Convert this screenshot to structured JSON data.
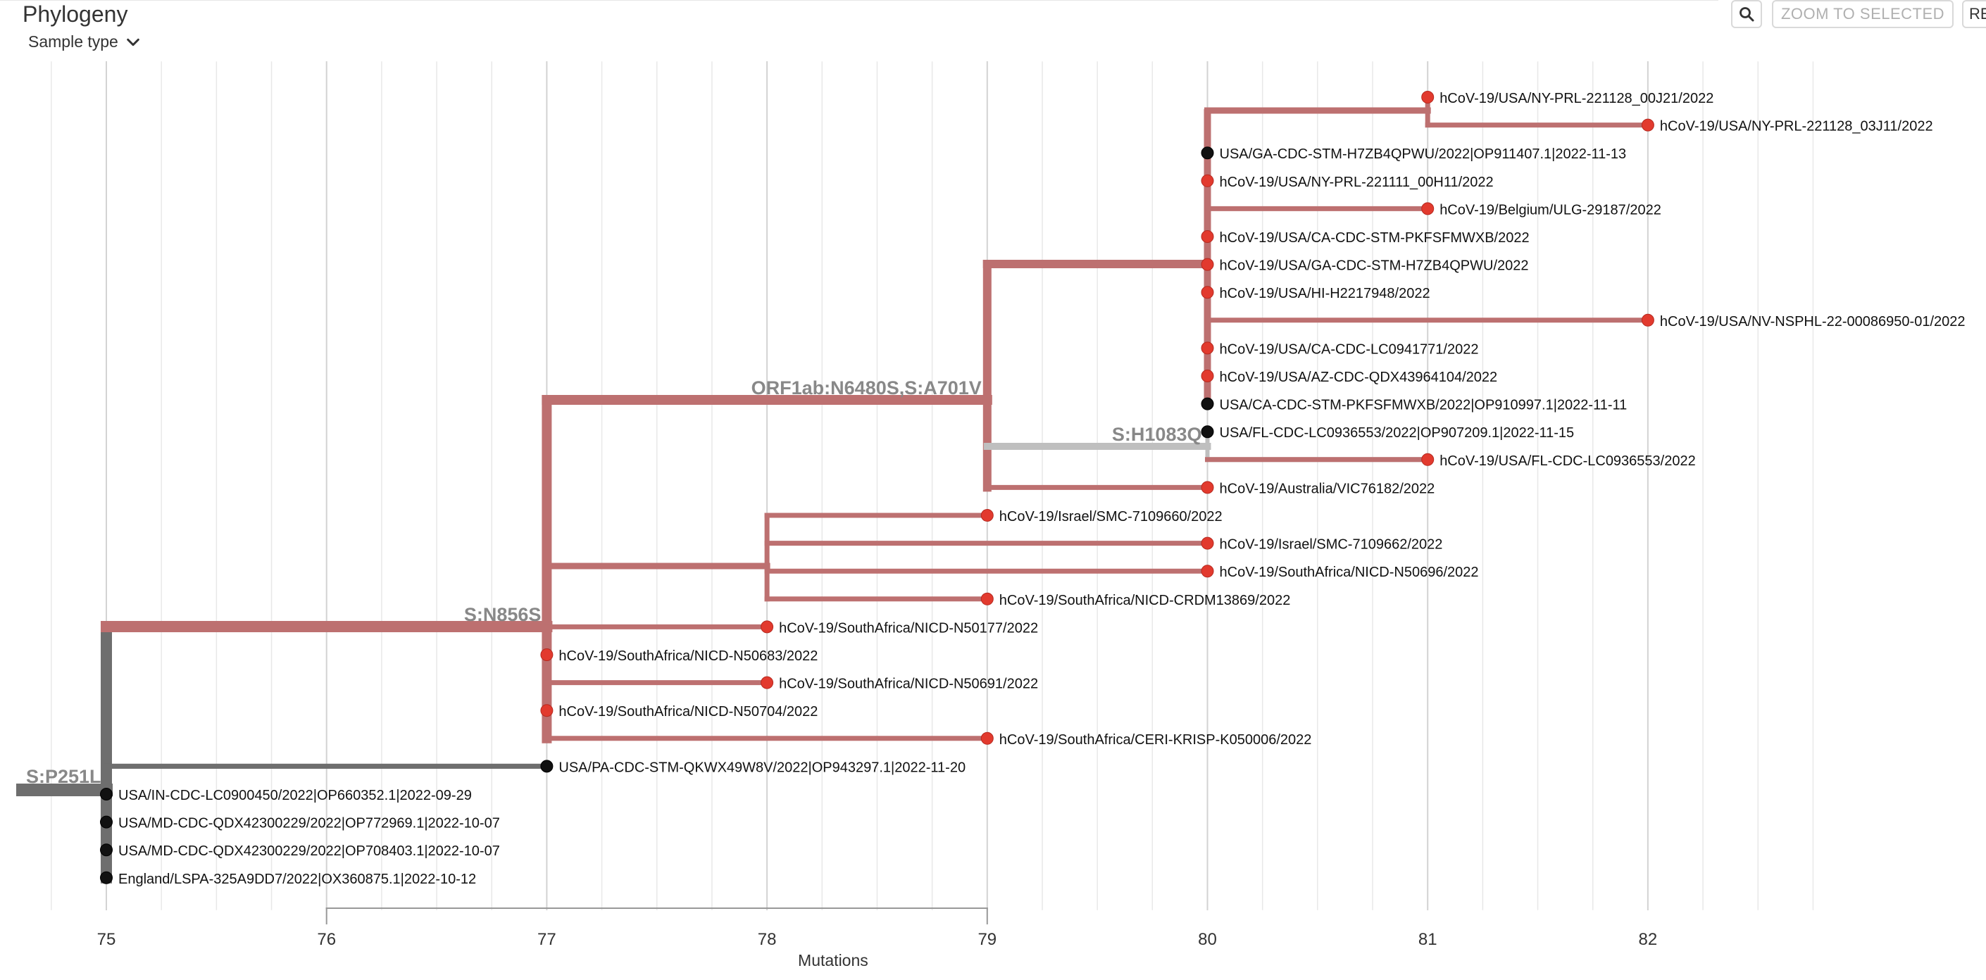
{
  "header": {
    "title": "Phylogeny",
    "sample_type_label": "Sample type",
    "zoom_to_selected_label": "ZOOM TO SELECTED",
    "reset_label": "RE"
  },
  "colors": {
    "highlight_branch": "#bd7070",
    "root_branch": "#6e6e6e",
    "muted_branch": "#bfbfbf",
    "red_tip": "#e23a2e",
    "black_tip": "#111111",
    "mutation_label": "#888888",
    "grid": "#e8e8e8",
    "major_grid": "#d3d3d3"
  },
  "axis": {
    "label": "Mutations",
    "ticks": [
      "75",
      "76",
      "77",
      "78",
      "79",
      "80",
      "81",
      "82"
    ]
  },
  "mutation_labels": [
    "S:P251L",
    "S:N856S",
    "ORF1ab:N6480S,S:A701V",
    "S:H1083Q"
  ],
  "tips": [
    "hCoV-19/USA/NY-PRL-221128_00J21/2022",
    "hCoV-19/USA/NY-PRL-221128_03J11/2022",
    "USA/GA-CDC-STM-H7ZB4QPWU/2022|OP911407.1|2022-11-13",
    "hCoV-19/USA/NY-PRL-221111_00H11/2022",
    "hCoV-19/Belgium/ULG-29187/2022",
    "hCoV-19/USA/CA-CDC-STM-PKFSFMWXB/2022",
    "hCoV-19/USA/GA-CDC-STM-H7ZB4QPWU/2022",
    "hCoV-19/USA/HI-H2217948/2022",
    "hCoV-19/USA/NV-NSPHL-22-00086950-01/2022",
    "hCoV-19/USA/CA-CDC-LC0941771/2022",
    "hCoV-19/USA/AZ-CDC-QDX43964104/2022",
    "USA/CA-CDC-STM-PKFSFMWXB/2022|OP910997.1|2022-11-11",
    "USA/FL-CDC-LC0936553/2022|OP907209.1|2022-11-15",
    "hCoV-19/USA/FL-CDC-LC0936553/2022",
    "hCoV-19/Australia/VIC76182/2022",
    "hCoV-19/Israel/SMC-7109660/2022",
    "hCoV-19/Israel/SMC-7109662/2022",
    "hCoV-19/SouthAfrica/NICD-N50696/2022",
    "hCoV-19/SouthAfrica/NICD-CRDM13869/2022",
    "hCoV-19/SouthAfrica/NICD-N50177/2022",
    "hCoV-19/SouthAfrica/NICD-N50683/2022",
    "hCoV-19/SouthAfrica/NICD-N50691/2022",
    "hCoV-19/SouthAfrica/NICD-N50704/2022",
    "hCoV-19/SouthAfrica/CERI-KRISP-K050006/2022",
    "USA/PA-CDC-STM-QKWX49W8V/2022|OP943297.1|2022-11-20",
    "USA/IN-CDC-LC0900450/2022|OP660352.1|2022-09-29",
    "USA/MD-CDC-QDX42300229/2022|OP772969.1|2022-10-07",
    "USA/MD-CDC-QDX42300229/2022|OP708403.1|2022-10-07",
    "England/LSPA-325A9DD7/2022|OX360875.1|2022-10-12"
  ],
  "chart_data": {
    "type": "phylogenetic-tree",
    "xlabel": "Mutations",
    "xlim": [
      75,
      82
    ],
    "nodes": {
      "root": {
        "x": 75,
        "mutation": "S:P251L"
      },
      "sn856s": {
        "x": 77,
        "parent": "root",
        "mutation": "S:N856S",
        "highlighted": true
      },
      "orf1ab": {
        "x": 79,
        "parent": "sn856s",
        "mutation": "ORF1ab:N6480S,S:A701V",
        "highlighted": true
      },
      "p80": {
        "x": 80,
        "parent": "orf1ab",
        "highlighted": true
      },
      "p81": {
        "x": 81,
        "parent": "p80",
        "highlighted": true
      },
      "sh1083q": {
        "x": 80,
        "parent": "orf1ab",
        "mutation": "S:H1083Q",
        "highlighted": false
      },
      "sa78": {
        "x": 78,
        "parent": "sn856s",
        "highlighted": true
      }
    },
    "tips": [
      {
        "name": "hCoV-19/USA/NY-PRL-221128_00J21/2022",
        "x": 81,
        "parent": "p81",
        "color": "red"
      },
      {
        "name": "hCoV-19/USA/NY-PRL-221128_03J11/2022",
        "x": 82,
        "parent": "p81",
        "color": "red"
      },
      {
        "name": "USA/GA-CDC-STM-H7ZB4QPWU/2022|OP911407.1|2022-11-13",
        "x": 80,
        "parent": "p80",
        "color": "black"
      },
      {
        "name": "hCoV-19/USA/NY-PRL-221111_00H11/2022",
        "x": 80,
        "parent": "p80",
        "color": "red"
      },
      {
        "name": "hCoV-19/Belgium/ULG-29187/2022",
        "x": 81,
        "parent": "p80",
        "color": "red"
      },
      {
        "name": "hCoV-19/USA/CA-CDC-STM-PKFSFMWXB/2022",
        "x": 80,
        "parent": "p80",
        "color": "red"
      },
      {
        "name": "hCoV-19/USA/GA-CDC-STM-H7ZB4QPWU/2022",
        "x": 80,
        "parent": "p80",
        "color": "red"
      },
      {
        "name": "hCoV-19/USA/HI-H2217948/2022",
        "x": 80,
        "parent": "p80",
        "color": "red"
      },
      {
        "name": "hCoV-19/USA/NV-NSPHL-22-00086950-01/2022",
        "x": 82,
        "parent": "p80",
        "color": "red"
      },
      {
        "name": "hCoV-19/USA/CA-CDC-LC0941771/2022",
        "x": 80,
        "parent": "p80",
        "color": "red"
      },
      {
        "name": "hCoV-19/USA/AZ-CDC-QDX43964104/2022",
        "x": 80,
        "parent": "p80",
        "color": "red"
      },
      {
        "name": "USA/CA-CDC-STM-PKFSFMWXB/2022|OP910997.1|2022-11-11",
        "x": 80,
        "parent": "p80",
        "color": "black"
      },
      {
        "name": "USA/FL-CDC-LC0936553/2022|OP907209.1|2022-11-15",
        "x": 80,
        "parent": "sh1083q",
        "color": "black"
      },
      {
        "name": "hCoV-19/USA/FL-CDC-LC0936553/2022",
        "x": 81,
        "parent": "sh1083q",
        "color": "red"
      },
      {
        "name": "hCoV-19/Australia/VIC76182/2022",
        "x": 80,
        "parent": "orf1ab",
        "color": "red"
      },
      {
        "name": "hCoV-19/Israel/SMC-7109660/2022",
        "x": 79,
        "parent": "sa78",
        "color": "red"
      },
      {
        "name": "hCoV-19/Israel/SMC-7109662/2022",
        "x": 80,
        "parent": "sa78",
        "color": "red"
      },
      {
        "name": "hCoV-19/SouthAfrica/NICD-N50696/2022",
        "x": 80,
        "parent": "sa78",
        "color": "red"
      },
      {
        "name": "hCoV-19/SouthAfrica/NICD-CRDM13869/2022",
        "x": 79,
        "parent": "sa78",
        "color": "red"
      },
      {
        "name": "hCoV-19/SouthAfrica/NICD-N50177/2022",
        "x": 78,
        "parent": "sn856s",
        "color": "red"
      },
      {
        "name": "hCoV-19/SouthAfrica/NICD-N50683/2022",
        "x": 77,
        "parent": "sn856s",
        "color": "red"
      },
      {
        "name": "hCoV-19/SouthAfrica/NICD-N50691/2022",
        "x": 78,
        "parent": "sn856s",
        "color": "red"
      },
      {
        "name": "hCoV-19/SouthAfrica/NICD-N50704/2022",
        "x": 77,
        "parent": "sn856s",
        "color": "red"
      },
      {
        "name": "hCoV-19/SouthAfrica/CERI-KRISP-K050006/2022",
        "x": 79,
        "parent": "sn856s",
        "color": "red"
      },
      {
        "name": "USA/PA-CDC-STM-QKWX49W8V/2022|OP943297.1|2022-11-20",
        "x": 77,
        "parent": "root",
        "color": "black"
      },
      {
        "name": "USA/IN-CDC-LC0900450/2022|OP660352.1|2022-09-29",
        "x": 75,
        "parent": "root",
        "color": "black"
      },
      {
        "name": "USA/MD-CDC-QDX42300229/2022|OP772969.1|2022-10-07",
        "x": 75,
        "parent": "root",
        "color": "black"
      },
      {
        "name": "USA/MD-CDC-QDX42300229/2022|OP708403.1|2022-10-07",
        "x": 75,
        "parent": "root",
        "color": "black"
      },
      {
        "name": "England/LSPA-325A9DD7/2022|OX360875.1|2022-10-12",
        "x": 75,
        "parent": "root",
        "color": "black"
      }
    ]
  }
}
